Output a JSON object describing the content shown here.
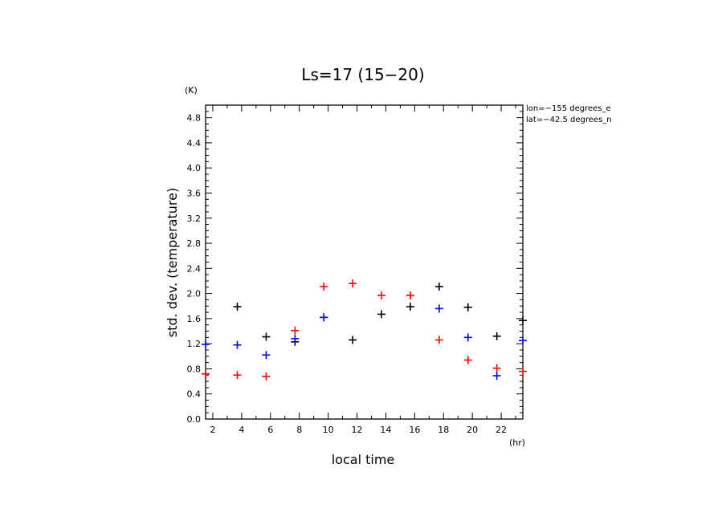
{
  "chart_data": {
    "type": "scatter",
    "title": "Ls=17 (15−20)",
    "xlabel": "local time",
    "ylabel": "std. dev. (temperature)",
    "x_unit": "(hr)",
    "y_unit": "(K)",
    "xlim": [
      1.5,
      23.5
    ],
    "ylim": [
      0.0,
      5.0
    ],
    "xticks": [
      2,
      4,
      6,
      8,
      10,
      12,
      14,
      16,
      18,
      20,
      22
    ],
    "yticks": [
      0.0,
      0.4,
      0.8,
      1.2,
      1.6,
      2.0,
      2.4,
      2.8,
      3.2,
      3.6,
      4.0,
      4.4,
      4.8
    ],
    "ytick_labels": [
      "0.0",
      "0.4",
      "0.8",
      "1.2",
      "1.6",
      "2.0",
      "2.4",
      "2.8",
      "3.2",
      "3.6",
      "4.0",
      "4.4",
      "4.8"
    ],
    "annotations": [
      "lon=−155 degrees_e",
      "lat=−42.5 degrees_n"
    ],
    "series": [
      {
        "name": "black",
        "color": "#000000",
        "x": [
          3.7,
          5.7,
          7.7,
          9.7,
          11.7,
          13.7,
          15.7,
          17.7,
          19.7,
          21.7,
          23.5
        ],
        "y": [
          1.79,
          1.31,
          1.23,
          1.62,
          1.26,
          1.67,
          1.79,
          2.11,
          1.78,
          1.32,
          1.57
        ]
      },
      {
        "name": "blue",
        "color": "#0000ff",
        "x": [
          1.5,
          3.7,
          5.7,
          7.7,
          9.7,
          17.7,
          19.7,
          21.7,
          23.5
        ],
        "y": [
          1.19,
          1.18,
          1.02,
          1.28,
          1.62,
          1.76,
          1.3,
          0.69,
          1.25
        ]
      },
      {
        "name": "red",
        "color": "#ff0000",
        "x": [
          1.5,
          3.7,
          5.7,
          7.7,
          9.7,
          11.7,
          13.7,
          15.7,
          17.7,
          19.7,
          21.7,
          23.5
        ],
        "y": [
          0.72,
          0.7,
          0.68,
          1.41,
          2.11,
          2.16,
          1.97,
          1.97,
          1.26,
          0.94,
          0.81,
          0.76
        ]
      }
    ]
  }
}
